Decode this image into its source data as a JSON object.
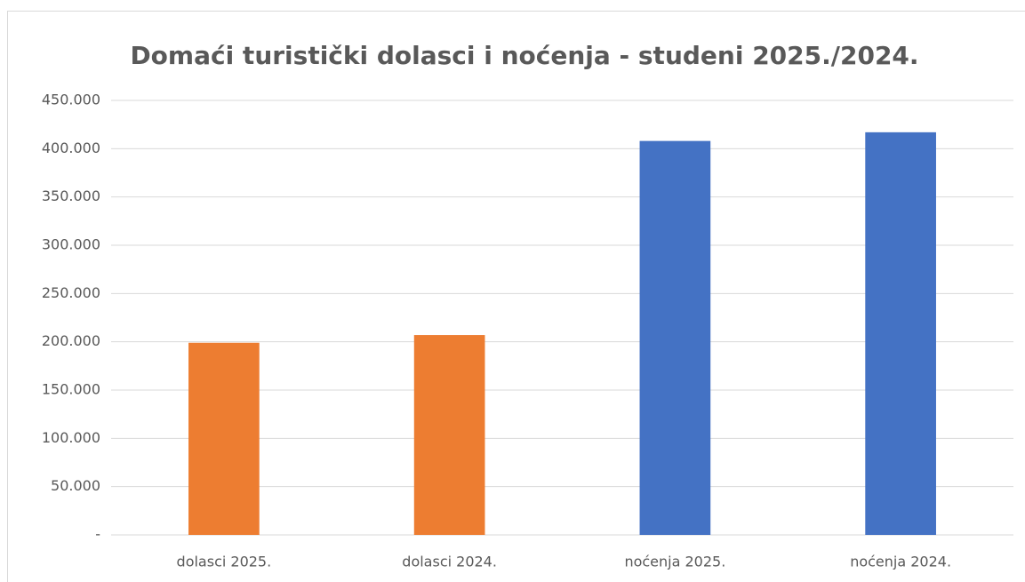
{
  "chart_data": {
    "type": "bar",
    "title": "Domaći turistički dolasci i noćenja - studeni 2025./2024.",
    "categories": [
      "dolasci 2025.",
      "dolasci 2024.",
      "noćenja 2025.",
      "noćenja 2024."
    ],
    "values": [
      199000,
      207000,
      408000,
      417000
    ],
    "colors": [
      "#ed7d31",
      "#ed7d31",
      "#4472c4",
      "#4472c4"
    ],
    "ylim": [
      0,
      450000
    ],
    "yticks": [
      {
        "value": 0,
        "label": "-"
      },
      {
        "value": 50000,
        "label": "50.000"
      },
      {
        "value": 100000,
        "label": "100.000"
      },
      {
        "value": 150000,
        "label": "150.000"
      },
      {
        "value": 200000,
        "label": "200.000"
      },
      {
        "value": 250000,
        "label": "250.000"
      },
      {
        "value": 300000,
        "label": "300.000"
      },
      {
        "value": 350000,
        "label": "350.000"
      },
      {
        "value": 400000,
        "label": "400.000"
      },
      {
        "value": 450000,
        "label": "450.000"
      }
    ],
    "grid": true
  }
}
